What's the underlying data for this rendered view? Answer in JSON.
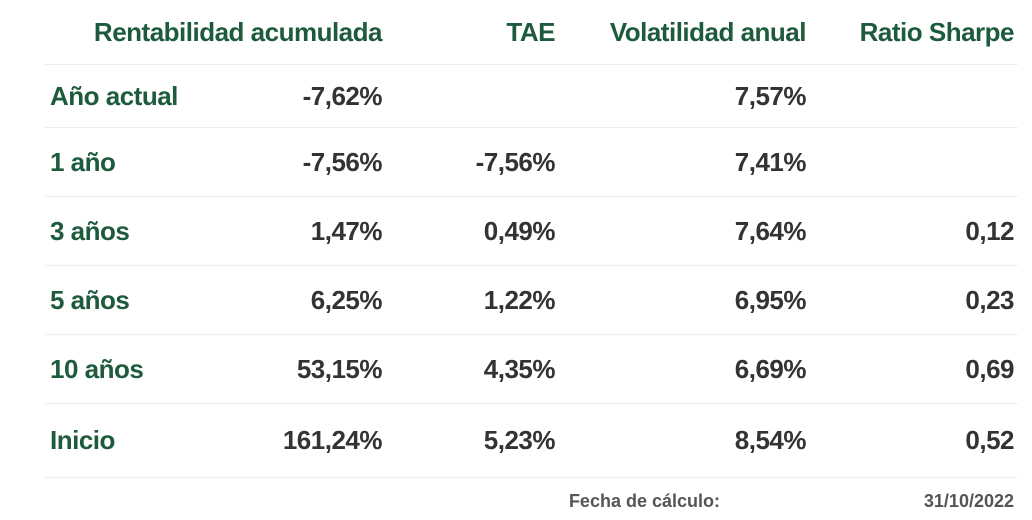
{
  "headers": {
    "cumulative_return": "Rentabilidad acumulada",
    "tae": "TAE",
    "annual_volatility": "Volatilidad anual",
    "sharpe_ratio": "Ratio Sharpe"
  },
  "rows": [
    {
      "period": "Año actual",
      "cumulative_return": "-7,62%",
      "tae": "",
      "annual_volatility": "7,57%",
      "sharpe_ratio": ""
    },
    {
      "period": "1 año",
      "cumulative_return": "-7,56%",
      "tae": "-7,56%",
      "annual_volatility": "7,41%",
      "sharpe_ratio": ""
    },
    {
      "period": "3 años",
      "cumulative_return": "1,47%",
      "tae": "0,49%",
      "annual_volatility": "7,64%",
      "sharpe_ratio": "0,12"
    },
    {
      "period": "5 años",
      "cumulative_return": "6,25%",
      "tae": "1,22%",
      "annual_volatility": "6,95%",
      "sharpe_ratio": "0,23"
    },
    {
      "period": "10 años",
      "cumulative_return": "53,15%",
      "tae": "4,35%",
      "annual_volatility": "6,69%",
      "sharpe_ratio": "0,69"
    },
    {
      "period": "Inicio",
      "cumulative_return": "161,24%",
      "tae": "5,23%",
      "annual_volatility": "8,54%",
      "sharpe_ratio": "0,52"
    }
  ],
  "footer": {
    "calculation_date_label": "Fecha de cálculo:",
    "calculation_date": "31/10/2022"
  },
  "colors": {
    "header_green": "#1d5b3c",
    "value_text": "#333333",
    "divider": "#eceeef"
  }
}
